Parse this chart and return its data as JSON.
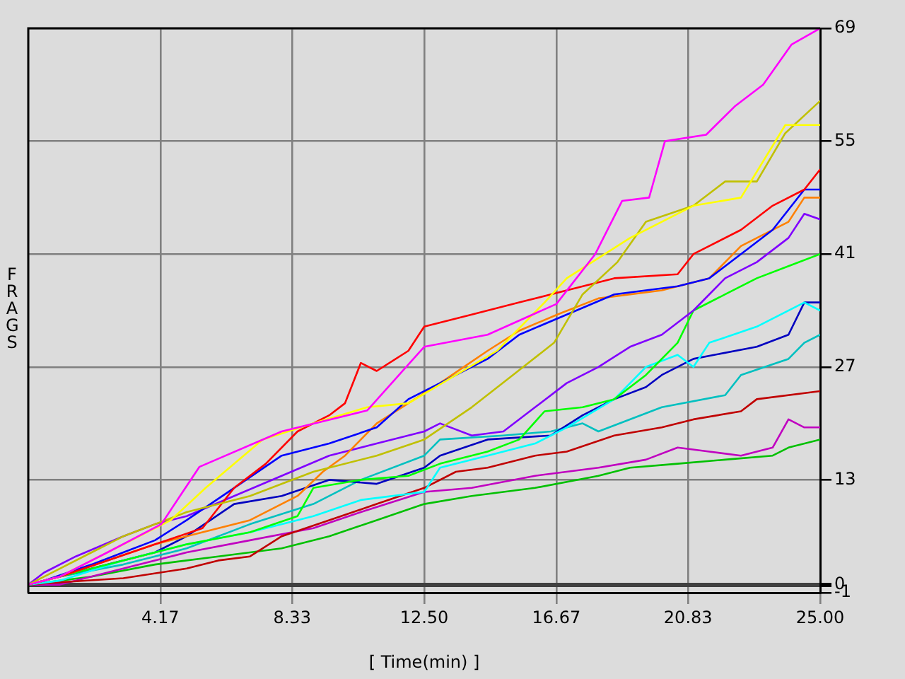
{
  "chart_data": {
    "type": "line",
    "xlabel": "[ Time(min) ]",
    "ylabel": "FRAGS",
    "xlim": [
      0,
      25
    ],
    "xticks": [
      4.17,
      8.33,
      {
        "value": 12.5,
        "label": "12.50"
      },
      16.67,
      20.83,
      {
        "value": 25,
        "label": "25.00"
      }
    ],
    "ylim": [
      -1,
      69
    ],
    "yticks": [
      -1,
      0,
      13,
      27,
      41,
      55,
      69
    ],
    "grid": true,
    "series": [
      {
        "color": "#ff00ff",
        "x": [
          0,
          1,
          2.5,
          4.2,
          5.4,
          8,
          10.7,
          12.5,
          14.5,
          16.67,
          17.9,
          18.75,
          19.6,
          20.1,
          21.4,
          22.3,
          23.2,
          24.1,
          25
        ],
        "values": [
          0,
          1,
          4,
          7.5,
          14.6,
          19,
          21.6,
          29.5,
          31,
          34.8,
          41,
          47.6,
          48,
          55,
          55.8,
          59.3,
          62,
          67,
          69
        ]
      },
      {
        "color": "#ffff00",
        "x": [
          0,
          1,
          3,
          4.5,
          5.6,
          7.4,
          9,
          10.7,
          12,
          13.5,
          14.8,
          16.3,
          17,
          19,
          21,
          22.5,
          23.9,
          25
        ],
        "values": [
          0,
          1,
          5,
          8,
          12,
          18,
          20,
          22,
          22.5,
          26,
          29,
          35,
          38,
          43,
          47,
          48,
          57,
          57
        ]
      },
      {
        "color": "#c0c000",
        "x": [
          0,
          1,
          2,
          3,
          5,
          7,
          9,
          11,
          12.5,
          14,
          15.3,
          16.6,
          17.5,
          18.6,
          19.5,
          21,
          22,
          23,
          23.9,
          25
        ],
        "values": [
          0,
          2,
          4,
          6,
          9,
          11,
          14,
          16,
          18,
          22,
          26,
          30,
          36,
          40,
          45,
          47,
          50,
          50,
          56,
          60
        ]
      },
      {
        "color": "#ff0000",
        "x": [
          0,
          1,
          2.5,
          4,
          5.5,
          6.5,
          7.5,
          8.5,
          9.5,
          10,
          10.5,
          11,
          12,
          12.5,
          14,
          15.5,
          17,
          18.5,
          20.5,
          21,
          22.5,
          23.5,
          24.5,
          25
        ],
        "values": [
          0,
          1,
          3,
          5,
          7,
          12,
          15,
          19,
          21,
          22.5,
          27.5,
          26.5,
          29,
          32,
          33.5,
          35,
          36.5,
          38,
          38.5,
          41,
          44,
          47,
          49,
          51.5
        ]
      },
      {
        "color": "#0000ff",
        "x": [
          0,
          0.5,
          2,
          3,
          4,
          5,
          6.5,
          8,
          9.5,
          11,
          12,
          13,
          14.5,
          15.5,
          17,
          18.5,
          20.5,
          21.5,
          22.5,
          23.5,
          24.5,
          25
        ],
        "values": [
          0,
          0.5,
          2.5,
          4,
          5.5,
          8,
          12,
          16,
          17.5,
          19.5,
          23,
          25,
          28,
          31,
          33.5,
          36,
          37,
          38,
          41,
          44,
          49,
          49
        ]
      },
      {
        "color": "#ff8000",
        "x": [
          0,
          1,
          2.5,
          4,
          5.5,
          7,
          8.5,
          9.3,
          10,
          11,
          12,
          13,
          14.5,
          15.5,
          16.7,
          18,
          20,
          21.5,
          22.5,
          24,
          24.5,
          25
        ],
        "values": [
          0,
          1,
          3,
          5,
          6.5,
          8,
          11,
          14,
          16,
          20,
          22.5,
          25,
          29,
          31.5,
          33.5,
          35.5,
          36.5,
          38,
          42,
          45,
          48,
          48
        ]
      },
      {
        "color": "#8000ff",
        "x": [
          0,
          0.5,
          1.5,
          3,
          4,
          5,
          6.5,
          8,
          9.5,
          11,
          12.5,
          13,
          14,
          15,
          16,
          17,
          18,
          19,
          20,
          21,
          22,
          23,
          24,
          24.5,
          25
        ],
        "values": [
          0,
          1.5,
          3.5,
          6,
          7.5,
          8.5,
          11,
          13.5,
          16,
          17.5,
          19,
          20,
          18.5,
          19,
          22,
          25,
          27,
          29.5,
          31,
          34,
          38,
          40,
          43,
          46,
          45.3
        ]
      },
      {
        "color": "#00ff00",
        "x": [
          0,
          1,
          3,
          5,
          7,
          8.5,
          9,
          10.5,
          12,
          13,
          14.5,
          15.5,
          16.3,
          17.5,
          18.5,
          19.5,
          20.5,
          21,
          22,
          23,
          24,
          25
        ],
        "values": [
          0,
          1,
          3,
          5,
          6.5,
          8.5,
          12,
          13,
          13.5,
          15,
          16.5,
          18,
          21.5,
          22,
          23,
          26,
          30,
          34,
          36,
          38,
          39.5,
          41
        ]
      },
      {
        "color": "#00ffff",
        "x": [
          0,
          1,
          3,
          5,
          7,
          9,
          10.5,
          12.5,
          13,
          14.5,
          16,
          17,
          18.5,
          19.5,
          20.5,
          21,
          21.5,
          23,
          24.5,
          25
        ],
        "values": [
          0,
          0.5,
          3,
          5,
          6.5,
          8.5,
          10.5,
          11.5,
          14.5,
          16,
          17.5,
          19.5,
          23,
          27,
          28.5,
          27,
          30,
          32,
          35,
          34
        ]
      },
      {
        "color": "#0000c0",
        "x": [
          0,
          2,
          4,
          5,
          6.5,
          8,
          9.5,
          11,
          12.5,
          13,
          14.5,
          16.5,
          17.5,
          18.5,
          19.5,
          20,
          21,
          23,
          24,
          24.5,
          25
        ],
        "values": [
          0,
          2,
          4,
          6,
          10,
          11,
          13,
          12.5,
          14.5,
          16,
          18,
          18.5,
          21,
          23,
          24.5,
          26,
          28,
          29.5,
          31,
          35,
          35
        ]
      },
      {
        "color": "#00c0c0",
        "x": [
          0,
          1,
          3,
          5,
          7,
          9,
          10.5,
          12.5,
          13,
          15,
          16.5,
          17.5,
          18,
          20,
          22,
          22.5,
          24,
          24.5,
          25
        ],
        "values": [
          0,
          1,
          2.5,
          4.5,
          7.5,
          10,
          13,
          16,
          18,
          18.5,
          19,
          20,
          19,
          22,
          23.5,
          26,
          28,
          30,
          31
        ]
      },
      {
        "color": "#c00000",
        "x": [
          0,
          1,
          3,
          5,
          6,
          7,
          8,
          9.5,
          11,
          12.5,
          13.5,
          14.5,
          16,
          17,
          18.5,
          20,
          21,
          22.5,
          23,
          25
        ],
        "values": [
          0,
          0.3,
          0.8,
          2,
          3,
          3.5,
          6,
          8,
          10,
          12,
          14,
          14.5,
          16,
          16.5,
          18.5,
          19.5,
          20.5,
          21.5,
          23,
          24
        ]
      },
      {
        "color": "#c000c0",
        "x": [
          0,
          1,
          3,
          5,
          7,
          9,
          10.5,
          12.5,
          14,
          16,
          18,
          19.5,
          20.5,
          21.5,
          22.5,
          23.5,
          24,
          24.5,
          25
        ],
        "values": [
          0,
          0,
          2,
          4,
          5.5,
          7,
          9,
          11.5,
          12,
          13.5,
          14.5,
          15.5,
          17,
          16.5,
          16,
          17,
          20.5,
          19.5,
          19.5
        ]
      },
      {
        "color": "#00c000",
        "x": [
          0,
          2,
          4,
          6,
          8,
          9.5,
          11,
          12.5,
          14,
          16,
          18,
          19,
          20.5,
          22,
          23.5,
          24,
          25
        ],
        "values": [
          0,
          1,
          2.5,
          3.5,
          4.5,
          6,
          8,
          10,
          11,
          12,
          13.5,
          14.5,
          15,
          15.5,
          16,
          17,
          18
        ]
      }
    ]
  }
}
